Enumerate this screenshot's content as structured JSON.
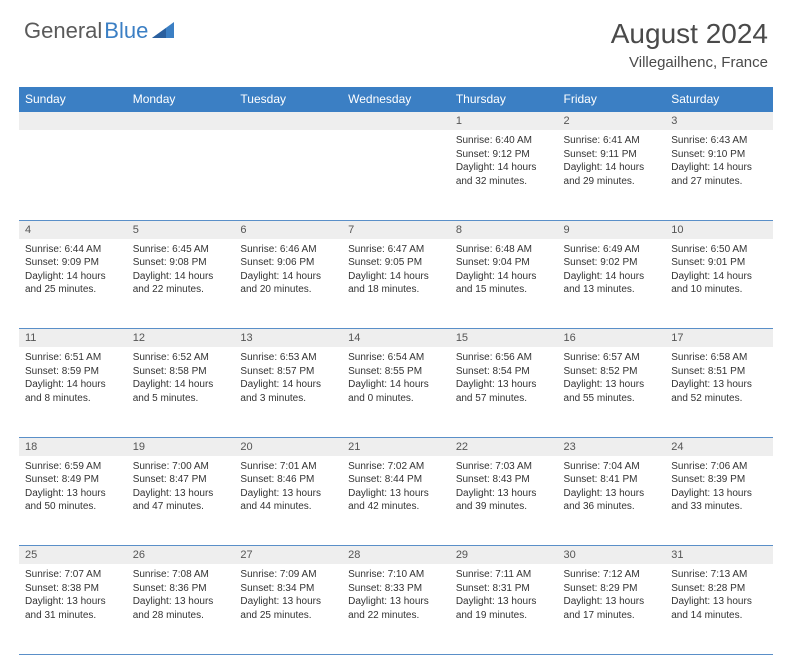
{
  "logo": {
    "text1": "General",
    "text2": "Blue"
  },
  "title": "August 2024",
  "location": "Villegailhenc, France",
  "colors": {
    "header_bg": "#3b7fc4",
    "header_text": "#ffffff",
    "daynum_bg": "#eeeeee",
    "rule": "#5a8fc8",
    "logo_gray": "#5a5a5a",
    "logo_blue": "#3b7fc4"
  },
  "weekdays": [
    "Sunday",
    "Monday",
    "Tuesday",
    "Wednesday",
    "Thursday",
    "Friday",
    "Saturday"
  ],
  "weeks": [
    [
      null,
      null,
      null,
      null,
      {
        "n": "1",
        "sr": "6:40 AM",
        "ss": "9:12 PM",
        "dl": "14 hours and 32 minutes."
      },
      {
        "n": "2",
        "sr": "6:41 AM",
        "ss": "9:11 PM",
        "dl": "14 hours and 29 minutes."
      },
      {
        "n": "3",
        "sr": "6:43 AM",
        "ss": "9:10 PM",
        "dl": "14 hours and 27 minutes."
      }
    ],
    [
      {
        "n": "4",
        "sr": "6:44 AM",
        "ss": "9:09 PM",
        "dl": "14 hours and 25 minutes."
      },
      {
        "n": "5",
        "sr": "6:45 AM",
        "ss": "9:08 PM",
        "dl": "14 hours and 22 minutes."
      },
      {
        "n": "6",
        "sr": "6:46 AM",
        "ss": "9:06 PM",
        "dl": "14 hours and 20 minutes."
      },
      {
        "n": "7",
        "sr": "6:47 AM",
        "ss": "9:05 PM",
        "dl": "14 hours and 18 minutes."
      },
      {
        "n": "8",
        "sr": "6:48 AM",
        "ss": "9:04 PM",
        "dl": "14 hours and 15 minutes."
      },
      {
        "n": "9",
        "sr": "6:49 AM",
        "ss": "9:02 PM",
        "dl": "14 hours and 13 minutes."
      },
      {
        "n": "10",
        "sr": "6:50 AM",
        "ss": "9:01 PM",
        "dl": "14 hours and 10 minutes."
      }
    ],
    [
      {
        "n": "11",
        "sr": "6:51 AM",
        "ss": "8:59 PM",
        "dl": "14 hours and 8 minutes."
      },
      {
        "n": "12",
        "sr": "6:52 AM",
        "ss": "8:58 PM",
        "dl": "14 hours and 5 minutes."
      },
      {
        "n": "13",
        "sr": "6:53 AM",
        "ss": "8:57 PM",
        "dl": "14 hours and 3 minutes."
      },
      {
        "n": "14",
        "sr": "6:54 AM",
        "ss": "8:55 PM",
        "dl": "14 hours and 0 minutes."
      },
      {
        "n": "15",
        "sr": "6:56 AM",
        "ss": "8:54 PM",
        "dl": "13 hours and 57 minutes."
      },
      {
        "n": "16",
        "sr": "6:57 AM",
        "ss": "8:52 PM",
        "dl": "13 hours and 55 minutes."
      },
      {
        "n": "17",
        "sr": "6:58 AM",
        "ss": "8:51 PM",
        "dl": "13 hours and 52 minutes."
      }
    ],
    [
      {
        "n": "18",
        "sr": "6:59 AM",
        "ss": "8:49 PM",
        "dl": "13 hours and 50 minutes."
      },
      {
        "n": "19",
        "sr": "7:00 AM",
        "ss": "8:47 PM",
        "dl": "13 hours and 47 minutes."
      },
      {
        "n": "20",
        "sr": "7:01 AM",
        "ss": "8:46 PM",
        "dl": "13 hours and 44 minutes."
      },
      {
        "n": "21",
        "sr": "7:02 AM",
        "ss": "8:44 PM",
        "dl": "13 hours and 42 minutes."
      },
      {
        "n": "22",
        "sr": "7:03 AM",
        "ss": "8:43 PM",
        "dl": "13 hours and 39 minutes."
      },
      {
        "n": "23",
        "sr": "7:04 AM",
        "ss": "8:41 PM",
        "dl": "13 hours and 36 minutes."
      },
      {
        "n": "24",
        "sr": "7:06 AM",
        "ss": "8:39 PM",
        "dl": "13 hours and 33 minutes."
      }
    ],
    [
      {
        "n": "25",
        "sr": "7:07 AM",
        "ss": "8:38 PM",
        "dl": "13 hours and 31 minutes."
      },
      {
        "n": "26",
        "sr": "7:08 AM",
        "ss": "8:36 PM",
        "dl": "13 hours and 28 minutes."
      },
      {
        "n": "27",
        "sr": "7:09 AM",
        "ss": "8:34 PM",
        "dl": "13 hours and 25 minutes."
      },
      {
        "n": "28",
        "sr": "7:10 AM",
        "ss": "8:33 PM",
        "dl": "13 hours and 22 minutes."
      },
      {
        "n": "29",
        "sr": "7:11 AM",
        "ss": "8:31 PM",
        "dl": "13 hours and 19 minutes."
      },
      {
        "n": "30",
        "sr": "7:12 AM",
        "ss": "8:29 PM",
        "dl": "13 hours and 17 minutes."
      },
      {
        "n": "31",
        "sr": "7:13 AM",
        "ss": "8:28 PM",
        "dl": "13 hours and 14 minutes."
      }
    ]
  ],
  "labels": {
    "sunrise": "Sunrise:",
    "sunset": "Sunset:",
    "daylight": "Daylight:"
  }
}
